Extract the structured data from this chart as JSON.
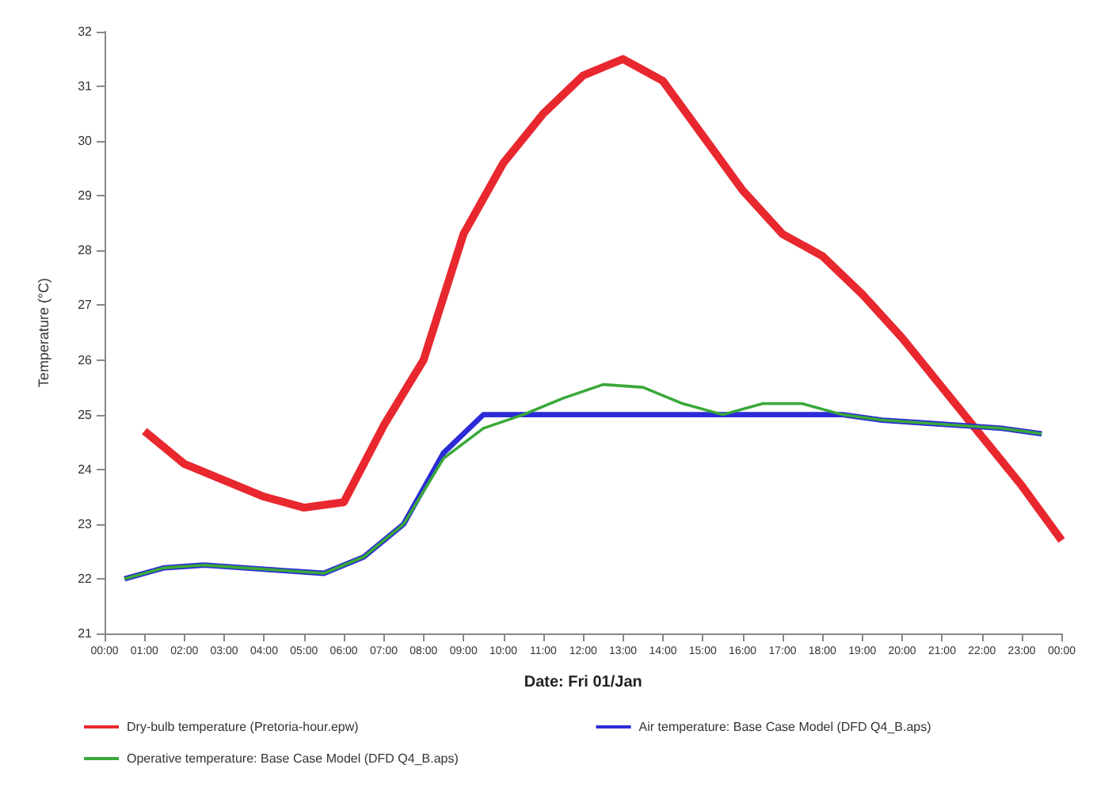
{
  "chart_data": {
    "type": "line",
    "xlabel": "Date: Fri 01/Jan",
    "ylabel": "Temperature (°C)",
    "xlim": [
      0,
      24
    ],
    "xticks": [
      {
        "value": 0,
        "label": "00:00"
      },
      {
        "value": 1,
        "label": "01:00"
      },
      {
        "value": 2,
        "label": "02:00"
      },
      {
        "value": 3,
        "label": "03:00"
      },
      {
        "value": 4,
        "label": "04:00"
      },
      {
        "value": 5,
        "label": "05:00"
      },
      {
        "value": 6,
        "label": "06:00"
      },
      {
        "value": 7,
        "label": "07:00"
      },
      {
        "value": 8,
        "label": "08:00"
      },
      {
        "value": 9,
        "label": "09:00"
      },
      {
        "value": 10,
        "label": "10:00"
      },
      {
        "value": 11,
        "label": "11:00"
      },
      {
        "value": 12,
        "label": "12:00"
      },
      {
        "value": 13,
        "label": "13:00"
      },
      {
        "value": 14,
        "label": "14:00"
      },
      {
        "value": 15,
        "label": "15:00"
      },
      {
        "value": 16,
        "label": "16:00"
      },
      {
        "value": 17,
        "label": "17:00"
      },
      {
        "value": 18,
        "label": "18:00"
      },
      {
        "value": 19,
        "label": "19:00"
      },
      {
        "value": 20,
        "label": "20:00"
      },
      {
        "value": 21,
        "label": "21:00"
      },
      {
        "value": 22,
        "label": "22:00"
      },
      {
        "value": 23,
        "label": "23:00"
      },
      {
        "value": 24,
        "label": "00:00"
      }
    ],
    "ylim": [
      21,
      32
    ],
    "yticks": [
      21,
      22,
      23,
      24,
      25,
      26,
      27,
      28,
      29,
      30,
      31,
      32
    ],
    "grid": false,
    "legend": "bottom",
    "marker": "none",
    "line_style": "solid",
    "series": [
      {
        "name": "Dry-bulb temperature (Pretoria-hour.epw)",
        "color": "#e8282e",
        "x": [
          1,
          2,
          3,
          4,
          5,
          6,
          7,
          8,
          9,
          10,
          11,
          12,
          13,
          14,
          15,
          16,
          17,
          18,
          19,
          20,
          21,
          22,
          23,
          24
        ],
        "values": [
          24.7,
          24.1,
          23.8,
          23.5,
          23.3,
          23.4,
          24.8,
          26.0,
          28.3,
          29.6,
          30.5,
          31.2,
          31.5,
          31.1,
          30.1,
          29.1,
          28.3,
          27.9,
          27.2,
          26.4,
          25.5,
          24.6,
          23.7,
          22.7
        ]
      },
      {
        "name": "Air temperature: Base Case Model (DFD Q4_B.aps)",
        "color": "#2b2bd8",
        "x": [
          0.5,
          1.5,
          2.5,
          3.5,
          4.5,
          5.5,
          6.5,
          7.5,
          8.5,
          9.5,
          10.5,
          11.5,
          12.5,
          13.5,
          14.5,
          15.5,
          16.5,
          17.5,
          18.5,
          19.5,
          20.5,
          21.5,
          22.5,
          23.5
        ],
        "values": [
          22.0,
          22.2,
          22.25,
          22.2,
          22.15,
          22.1,
          22.4,
          23.0,
          24.3,
          25.0,
          25.0,
          25.0,
          25.0,
          25.0,
          25.0,
          25.0,
          25.0,
          25.0,
          25.0,
          24.9,
          24.85,
          24.8,
          24.75,
          24.65
        ]
      },
      {
        "name": "Operative temperature: Base Case Model (DFD Q4_B.aps)",
        "color": "#3aa83a",
        "x": [
          0.5,
          1.5,
          2.5,
          3.5,
          4.5,
          5.5,
          6.5,
          7.5,
          8.5,
          9.5,
          10.5,
          11.5,
          12.5,
          13.5,
          14.5,
          15.5,
          16.5,
          17.5,
          18.5,
          19.5,
          20.5,
          21.5,
          22.5,
          23.5
        ],
        "values": [
          22.0,
          22.2,
          22.25,
          22.2,
          22.15,
          22.1,
          22.4,
          23.0,
          24.2,
          24.75,
          25.0,
          25.3,
          25.55,
          25.5,
          25.2,
          25.0,
          25.2,
          25.2,
          25.0,
          24.9,
          24.85,
          24.8,
          24.75,
          24.65
        ]
      }
    ]
  }
}
